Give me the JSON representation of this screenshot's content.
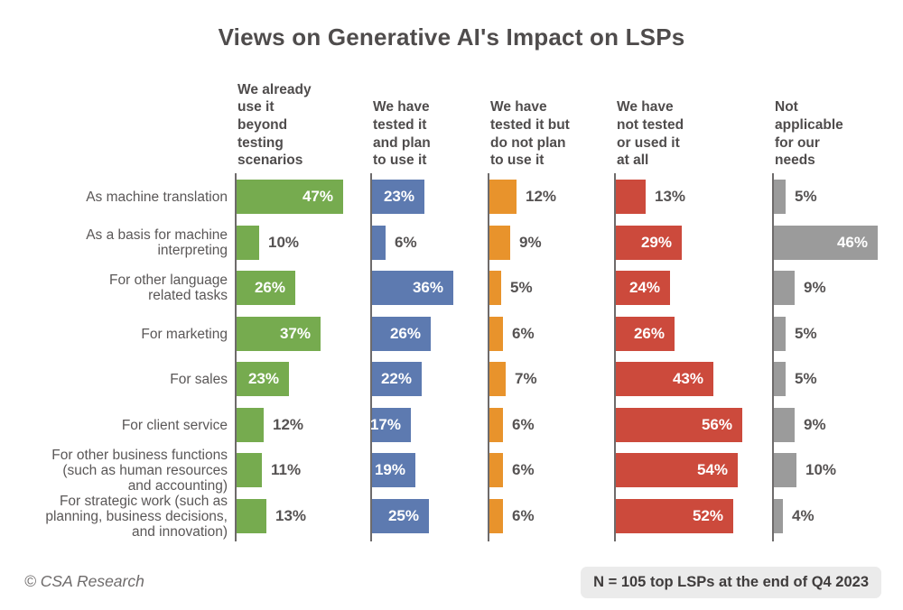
{
  "title": "Views on Generative AI's Impact on LSPs",
  "footer": {
    "credit": "© CSA Research",
    "note": "N = 105 top LSPs at the end of Q4 2023"
  },
  "chart_data": {
    "type": "bar",
    "orientation": "horizontal",
    "title": "Views on Generative AI's Impact on LSPs",
    "value_suffix": "%",
    "xlim": [
      0,
      60
    ],
    "grid": false,
    "legend_position": "column headers above each panel",
    "categories": [
      "As machine translation",
      "As a basis for machine\ninterpreting",
      "For other language\nrelated tasks",
      "For marketing",
      "For sales",
      "For client service",
      "For other business functions\n(such as human resources\nand accounting)",
      "For strategic work (such as\nplanning, business decisions,\nand innovation)"
    ],
    "series": [
      {
        "name": "We already\nuse it\nbeyond\ntesting\nscenarios",
        "color": "#76ab4f",
        "values": [
          47,
          10,
          26,
          37,
          23,
          12,
          11,
          13
        ]
      },
      {
        "name": "We have\ntested it\nand plan\nto use it",
        "color": "#5d7ab0",
        "values": [
          23,
          6,
          36,
          26,
          22,
          17,
          19,
          25
        ]
      },
      {
        "name": "We have\ntested it but\ndo not plan\nto use it",
        "color": "#e8932c",
        "values": [
          12,
          9,
          5,
          6,
          7,
          6,
          6,
          6
        ]
      },
      {
        "name": "We have\nnot tested\nor used it\nat all",
        "color": "#cc4a3c",
        "values": [
          13,
          29,
          24,
          26,
          43,
          56,
          54,
          52
        ]
      },
      {
        "name": "Not\napplicable\nfor our\nneeds",
        "color": "#9b9b9b",
        "values": [
          5,
          46,
          9,
          5,
          5,
          9,
          10,
          4
        ]
      }
    ]
  }
}
